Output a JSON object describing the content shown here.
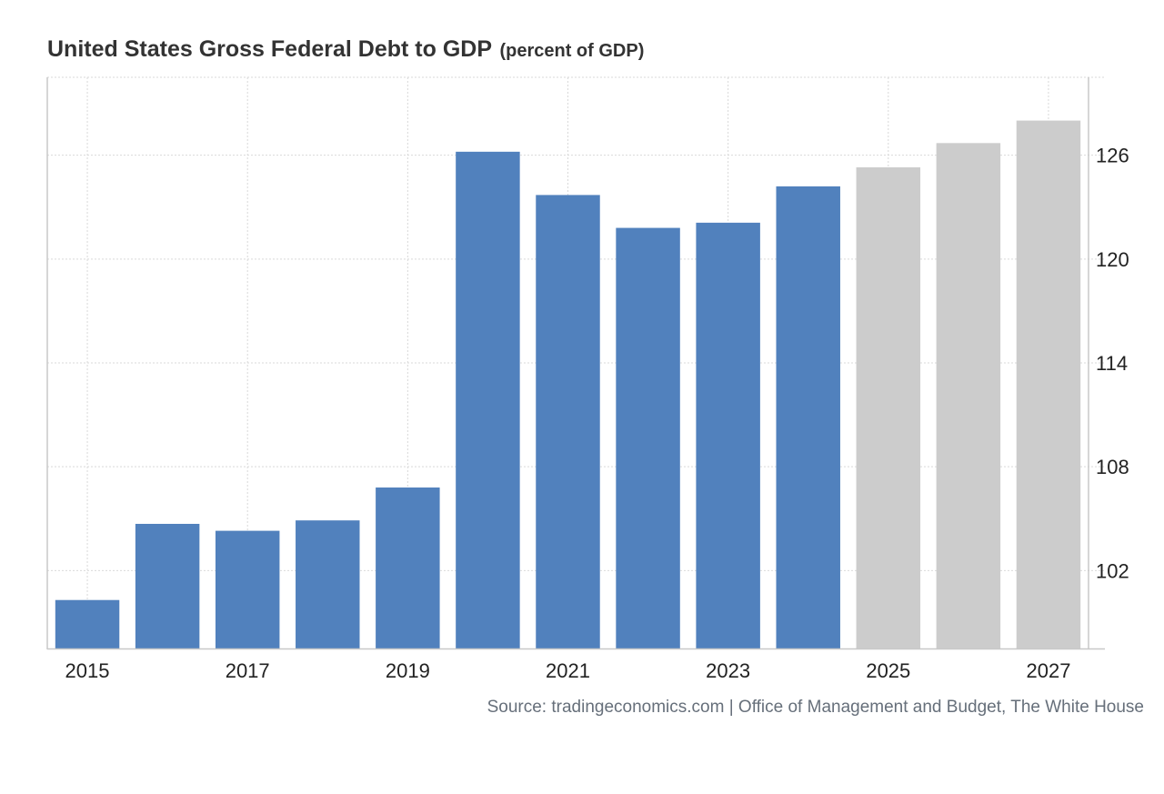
{
  "chart_data": {
    "type": "bar",
    "title": "United States Gross Federal Debt to GDP",
    "subtitle": "(percent of GDP)",
    "categories": [
      "2015",
      "2016",
      "2017",
      "2018",
      "2019",
      "2020",
      "2021",
      "2022",
      "2023",
      "2024",
      "2025",
      "2026",
      "2027"
    ],
    "values": [
      100.3,
      104.7,
      104.3,
      104.9,
      106.8,
      126.2,
      123.7,
      121.8,
      122.1,
      124.2,
      125.3,
      126.7,
      128.0
    ],
    "forecast_from_index": 10,
    "x_tick_labels": [
      "2015",
      "",
      "2017",
      "",
      "2019",
      "",
      "2021",
      "",
      "2023",
      "",
      "2025",
      "",
      "2027"
    ],
    "y_ticks": [
      102,
      108,
      114,
      120,
      126
    ],
    "ylim": [
      97.5,
      130.5
    ],
    "xlabel": "",
    "ylabel": "",
    "y_axis_side": "right",
    "grid": true,
    "colors": {
      "actual": "#5181bd",
      "forecast": "#cccccc",
      "grid": "#d9d9d9",
      "axis": "#c8c8c8",
      "text": "#222222"
    },
    "source": "Source: tradingeconomics.com | Office of Management and Budget, The White House"
  }
}
